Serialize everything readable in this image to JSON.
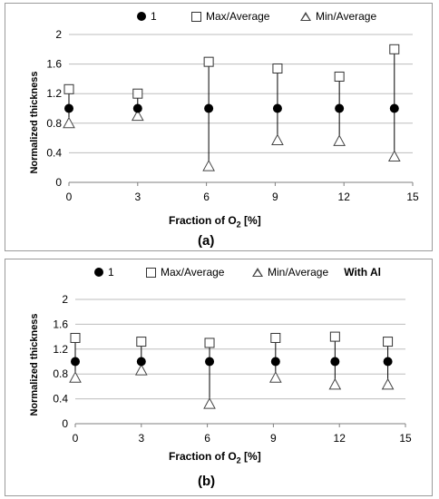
{
  "chart_data": [
    {
      "type": "scatter",
      "panel_label": "(a)",
      "annotation": "",
      "xlabel_main": "Fraction of O",
      "xlabel_sub": "2",
      "xlabel_tail": " [%]",
      "ylabel": "Normalized thickness",
      "xlim": [
        0,
        15
      ],
      "ylim": [
        0,
        2
      ],
      "xticks": [
        "0",
        "3",
        "6",
        "9",
        "12",
        "15"
      ],
      "yticks": [
        "0",
        "0.4",
        "0.8",
        "1.2",
        "1.6",
        "2"
      ],
      "grid": "horizontal",
      "legend_position": "top",
      "x": [
        0,
        3,
        6.1,
        9.1,
        11.8,
        14.2
      ],
      "series": [
        {
          "name": "1",
          "marker": "circle",
          "values": [
            1,
            1,
            1,
            1,
            1,
            1
          ]
        },
        {
          "name": "Max/Average",
          "marker": "square",
          "values": [
            1.26,
            1.2,
            1.63,
            1.54,
            1.43,
            1.8
          ]
        },
        {
          "name": "Min/Average",
          "marker": "triangle",
          "values": [
            0.8,
            0.9,
            0.22,
            0.57,
            0.56,
            0.35
          ]
        }
      ]
    },
    {
      "type": "scatter",
      "panel_label": "(b)",
      "annotation": "With Al",
      "xlabel_main": "Fraction of O",
      "xlabel_sub": "2",
      "xlabel_tail": " [%]",
      "ylabel": "Normalized thickness",
      "xlim": [
        0,
        15
      ],
      "ylim": [
        0,
        2
      ],
      "xticks": [
        "0",
        "3",
        "6",
        "9",
        "12",
        "15"
      ],
      "yticks": [
        "0",
        "0.4",
        "0.8",
        "1.2",
        "1.6",
        "2"
      ],
      "grid": "horizontal",
      "legend_position": "top",
      "x": [
        0,
        3,
        6.1,
        9.1,
        11.8,
        14.2
      ],
      "series": [
        {
          "name": "1",
          "marker": "circle",
          "values": [
            1,
            1,
            1,
            1,
            1,
            1
          ]
        },
        {
          "name": "Max/Average",
          "marker": "square",
          "values": [
            1.38,
            1.32,
            1.3,
            1.38,
            1.4,
            1.32
          ]
        },
        {
          "name": "Min/Average",
          "marker": "triangle",
          "values": [
            0.74,
            0.86,
            0.32,
            0.74,
            0.63,
            0.63
          ]
        }
      ]
    }
  ],
  "colors": {
    "marker": "#000000",
    "grid": "#bdbdbd",
    "axis": "#7f7f7f",
    "errorbar": "#000000"
  }
}
